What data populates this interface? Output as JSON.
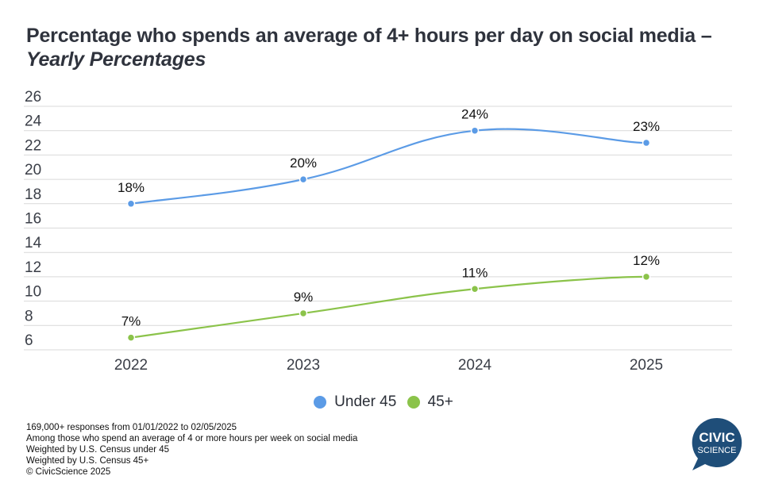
{
  "title": {
    "main": "Percentage who spends an average of 4+ hours per day on social media – ",
    "italic": "Yearly Percentages"
  },
  "legend": [
    {
      "label": "Under 45",
      "color": "#5b9be6"
    },
    {
      "label": "45+",
      "color": "#8bc34a"
    }
  ],
  "footnotes": [
    "169,000+ responses from 01/01/2022 to 02/05/2025",
    "Among those who spend an average of 4 or more hours per week on social media",
    "Weighted by U.S. Census under 45",
    "Weighted by U.S. Census 45+",
    "© CivicScience 2025"
  ],
  "logo": {
    "line1": "CIVIC",
    "line2": "SCIENCE",
    "color": "#1f4e79"
  },
  "chart_data": {
    "type": "line",
    "title": "Percentage who spends an average of 4+ hours per day on social media – Yearly Percentages",
    "xlabel": "",
    "ylabel": "",
    "categories": [
      "2022",
      "2023",
      "2024",
      "2025"
    ],
    "ylim": [
      6,
      26
    ],
    "yticks": [
      26,
      24,
      22,
      20,
      18,
      16,
      14,
      12,
      10,
      8,
      6
    ],
    "grid": true,
    "legend_position": "bottom",
    "series": [
      {
        "name": "Under 45",
        "color": "#5b9be6",
        "values": [
          18,
          20,
          24,
          23
        ],
        "labels": [
          "18%",
          "20%",
          "24%",
          "23%"
        ],
        "smooth": true
      },
      {
        "name": "45+",
        "color": "#8bc34a",
        "values": [
          7,
          9,
          11,
          12
        ],
        "labels": [
          "7%",
          "9%",
          "11%",
          "12%"
        ],
        "smooth": true
      }
    ]
  }
}
